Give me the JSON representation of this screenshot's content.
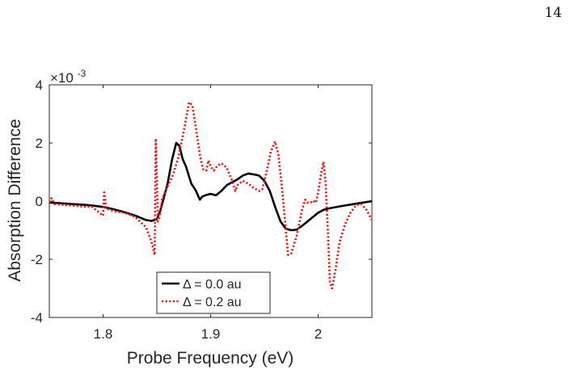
{
  "page_number": "14",
  "chart_data": {
    "type": "line",
    "xlabel": "Probe Frequency (eV)",
    "ylabel": "Absorption Difference",
    "y_exponent_label": "×10",
    "y_exponent_power": "-3",
    "xlim": [
      1.75,
      2.05
    ],
    "ylim": [
      -4,
      4
    ],
    "xticks": [
      1.8,
      1.9,
      2.0
    ],
    "xtick_labels": [
      "1.8",
      "1.9",
      "2"
    ],
    "yticks": [
      -4,
      -2,
      0,
      2,
      4
    ],
    "ytick_labels": [
      "-4",
      "-2",
      "0",
      "2",
      "4"
    ],
    "grid": false,
    "legend_position": "bottom-center",
    "series": [
      {
        "name": "Δ = 0.0 au",
        "color": "#000000",
        "style": "solid",
        "points": [
          [
            1.75,
            -0.05
          ],
          [
            1.76,
            -0.07
          ],
          [
            1.77,
            -0.1
          ],
          [
            1.78,
            -0.12
          ],
          [
            1.79,
            -0.15
          ],
          [
            1.8,
            -0.2
          ],
          [
            1.81,
            -0.28
          ],
          [
            1.82,
            -0.38
          ],
          [
            1.83,
            -0.5
          ],
          [
            1.84,
            -0.65
          ],
          [
            1.845,
            -0.68
          ],
          [
            1.85,
            -0.62
          ],
          [
            1.853,
            -0.35
          ],
          [
            1.856,
            0.05
          ],
          [
            1.86,
            0.6
          ],
          [
            1.864,
            1.4
          ],
          [
            1.868,
            2.0
          ],
          [
            1.871,
            1.9
          ],
          [
            1.874,
            1.45
          ],
          [
            1.877,
            1.2
          ],
          [
            1.882,
            0.6
          ],
          [
            1.886,
            0.38
          ],
          [
            1.89,
            0.05
          ],
          [
            1.892,
            0.15
          ],
          [
            1.895,
            0.2
          ],
          [
            1.9,
            0.25
          ],
          [
            1.905,
            0.2
          ],
          [
            1.91,
            0.35
          ],
          [
            1.915,
            0.55
          ],
          [
            1.92,
            0.65
          ],
          [
            1.925,
            0.75
          ],
          [
            1.93,
            0.88
          ],
          [
            1.935,
            0.95
          ],
          [
            1.94,
            0.92
          ],
          [
            1.945,
            0.88
          ],
          [
            1.95,
            0.7
          ],
          [
            1.955,
            0.35
          ],
          [
            1.96,
            -0.2
          ],
          [
            1.965,
            -0.7
          ],
          [
            1.97,
            -0.95
          ],
          [
            1.975,
            -1.0
          ],
          [
            1.98,
            -0.98
          ],
          [
            1.985,
            -0.85
          ],
          [
            1.99,
            -0.7
          ],
          [
            1.995,
            -0.55
          ],
          [
            2.0,
            -0.4
          ],
          [
            2.005,
            -0.3
          ],
          [
            2.01,
            -0.25
          ],
          [
            2.02,
            -0.18
          ],
          [
            2.03,
            -0.12
          ],
          [
            2.04,
            -0.06
          ],
          [
            2.05,
            0.0
          ]
        ]
      },
      {
        "name": "Δ = 0.2 au",
        "color": "#e8191c",
        "style": "dotted",
        "points": [
          [
            1.75,
            -0.05
          ],
          [
            1.752,
            0.1
          ],
          [
            1.755,
            -0.1
          ],
          [
            1.76,
            -0.12
          ],
          [
            1.77,
            -0.15
          ],
          [
            1.78,
            -0.18
          ],
          [
            1.79,
            -0.2
          ],
          [
            1.8,
            -0.5
          ],
          [
            1.801,
            0.3
          ],
          [
            1.803,
            -0.25
          ],
          [
            1.81,
            -0.35
          ],
          [
            1.82,
            -0.4
          ],
          [
            1.83,
            -0.55
          ],
          [
            1.84,
            -0.9
          ],
          [
            1.845,
            -1.4
          ],
          [
            1.848,
            -1.85
          ],
          [
            1.849,
            2.15
          ],
          [
            1.851,
            -0.7
          ],
          [
            1.853,
            -0.5
          ],
          [
            1.855,
            0.1
          ],
          [
            1.86,
            0.5
          ],
          [
            1.865,
            0.9
          ],
          [
            1.87,
            1.5
          ],
          [
            1.875,
            2.4
          ],
          [
            1.88,
            3.4
          ],
          [
            1.883,
            3.3
          ],
          [
            1.886,
            2.6
          ],
          [
            1.89,
            1.6
          ],
          [
            1.893,
            1.1
          ],
          [
            1.896,
            1.05
          ],
          [
            1.898,
            1.4
          ],
          [
            1.9,
            1.2
          ],
          [
            1.903,
            1.05
          ],
          [
            1.906,
            1.2
          ],
          [
            1.91,
            1.3
          ],
          [
            1.915,
            1.15
          ],
          [
            1.92,
            0.7
          ],
          [
            1.923,
            0.35
          ],
          [
            1.925,
            0.55
          ],
          [
            1.93,
            0.7
          ],
          [
            1.935,
            0.6
          ],
          [
            1.94,
            0.45
          ],
          [
            1.945,
            0.35
          ],
          [
            1.948,
            0.4
          ],
          [
            1.952,
            1.0
          ],
          [
            1.956,
            1.7
          ],
          [
            1.96,
            2.05
          ],
          [
            1.963,
            1.6
          ],
          [
            1.966,
            0.6
          ],
          [
            1.969,
            -0.6
          ],
          [
            1.972,
            -1.85
          ],
          [
            1.975,
            -1.8
          ],
          [
            1.98,
            -1.2
          ],
          [
            1.985,
            -0.3
          ],
          [
            1.988,
            0.05
          ],
          [
            1.99,
            -0.05
          ],
          [
            1.993,
            -0.05
          ],
          [
            1.995,
            0.02
          ],
          [
            1.998,
            -0.05
          ],
          [
            2.0,
            0.3
          ],
          [
            2.003,
            1.0
          ],
          [
            2.005,
            1.35
          ],
          [
            2.007,
            0.6
          ],
          [
            2.009,
            -1.0
          ],
          [
            2.011,
            -2.8
          ],
          [
            2.013,
            -3.0
          ],
          [
            2.016,
            -2.4
          ],
          [
            2.02,
            -1.4
          ],
          [
            2.025,
            -0.8
          ],
          [
            2.03,
            -0.4
          ],
          [
            2.035,
            -0.15
          ],
          [
            2.04,
            -0.1
          ],
          [
            2.045,
            -0.3
          ],
          [
            2.05,
            -0.65
          ]
        ]
      }
    ]
  }
}
